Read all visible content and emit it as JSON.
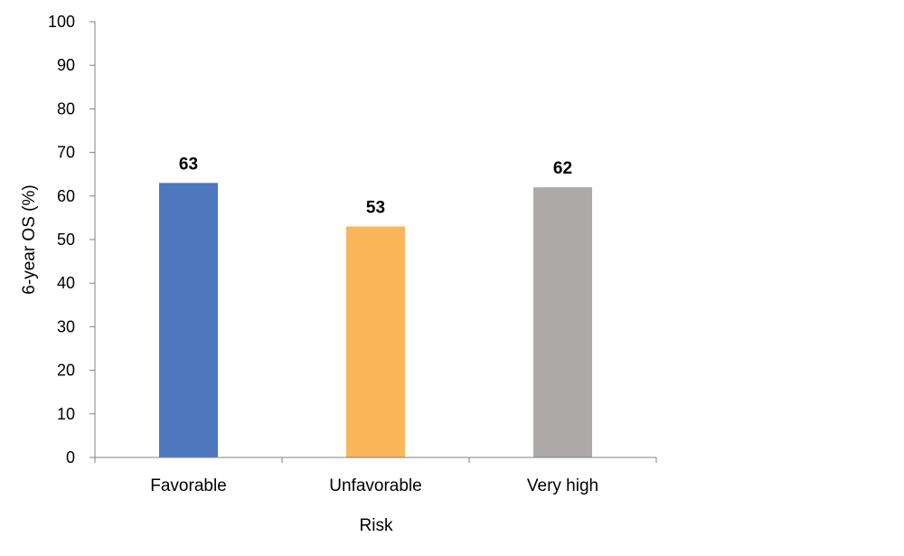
{
  "chart_data": {
    "type": "bar",
    "categories": [
      "Favorable",
      "Unfavorable",
      "Very high"
    ],
    "values": [
      63,
      53,
      62
    ],
    "data_labels": [
      "63",
      "53",
      "62"
    ],
    "colors": [
      "#4e78bd",
      "#fbb55a",
      "#aeaaaa"
    ],
    "xlabel": "Risk",
    "ylabel": "6-year OS (%)",
    "ylim": [
      0,
      100
    ],
    "yticks": [
      0,
      10,
      20,
      30,
      40,
      50,
      60,
      70,
      80,
      90,
      100
    ],
    "grid": false,
    "legend": "none",
    "axis_color": "#808080"
  }
}
